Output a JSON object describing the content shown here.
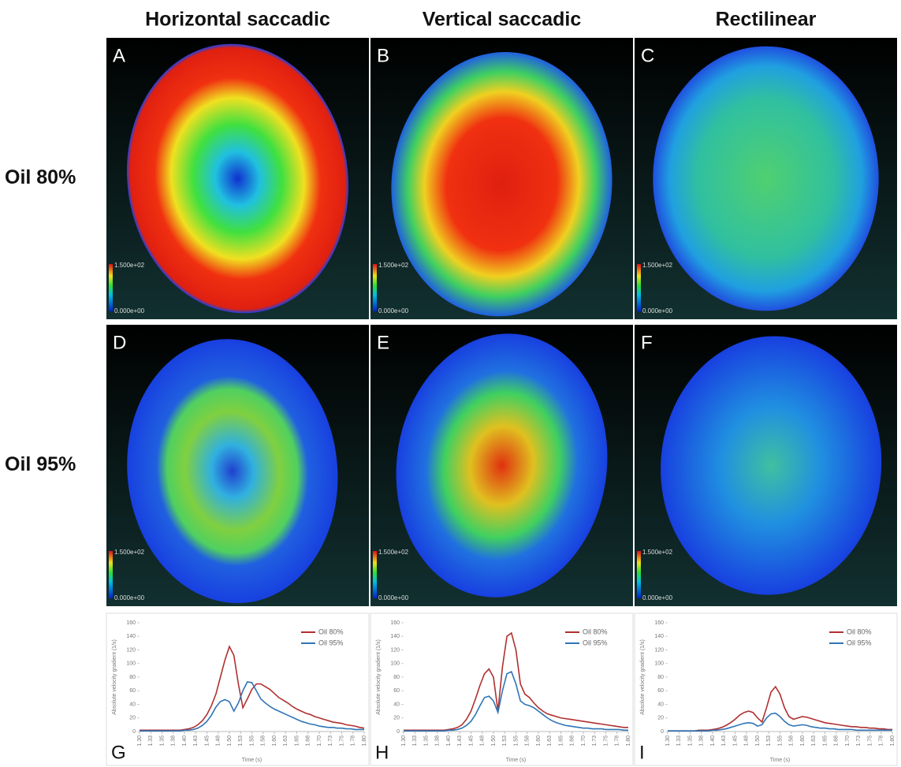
{
  "columns": [
    "Horizontal saccadic",
    "Vertical saccadic",
    "Rectilinear"
  ],
  "rows": [
    "Oil 80%",
    "Oil 95%"
  ],
  "panel_letters": [
    "A",
    "B",
    "C",
    "D",
    "E",
    "F",
    "G",
    "H",
    "I"
  ],
  "colorbar": {
    "max": "1.500e+02",
    "min": "0.000e+00"
  },
  "chart_data": [
    {
      "type": "line",
      "xlabel": "Time (s)",
      "ylabel": "Absolute velocity gradient (1/s)",
      "x": [
        1.3,
        1.31,
        1.32,
        1.33,
        1.34,
        1.35,
        1.36,
        1.37,
        1.38,
        1.39,
        1.4,
        1.41,
        1.42,
        1.43,
        1.44,
        1.45,
        1.46,
        1.47,
        1.48,
        1.49,
        1.5,
        1.51,
        1.52,
        1.53,
        1.54,
        1.55,
        1.56,
        1.57,
        1.58,
        1.59,
        1.6,
        1.61,
        1.62,
        1.63,
        1.64,
        1.65,
        1.66,
        1.67,
        1.68,
        1.69,
        1.7,
        1.71,
        1.72,
        1.73,
        1.74,
        1.75,
        1.76,
        1.77,
        1.78,
        1.79,
        1.8
      ],
      "series": [
        {
          "name": "Oil 80%",
          "color": "#b03030",
          "values": [
            2,
            2,
            2,
            2,
            2,
            2,
            2,
            2,
            2,
            2,
            3,
            4,
            6,
            10,
            16,
            25,
            38,
            55,
            80,
            105,
            125,
            112,
            70,
            35,
            48,
            62,
            70,
            70,
            66,
            62,
            56,
            50,
            46,
            42,
            37,
            33,
            30,
            27,
            25,
            22,
            20,
            18,
            16,
            14,
            13,
            12,
            10,
            9,
            8,
            6,
            5
          ]
        },
        {
          "name": "Oil 95%",
          "color": "#2e75b6",
          "values": [
            1,
            1,
            1,
            1,
            1,
            1,
            1,
            1,
            1,
            1,
            2,
            2,
            3,
            5,
            9,
            15,
            24,
            36,
            44,
            47,
            44,
            30,
            42,
            60,
            73,
            72,
            60,
            48,
            42,
            37,
            33,
            30,
            27,
            24,
            21,
            18,
            15,
            13,
            11,
            10,
            8,
            7,
            6,
            6,
            5,
            5,
            4,
            4,
            3,
            3,
            3
          ]
        }
      ],
      "xlim": [
        1.3,
        1.8
      ],
      "xticks": [
        {
          "value": 1.3,
          "label": "1.30"
        },
        {
          "value": 1.325,
          "label": "1.33"
        },
        {
          "value": 1.35,
          "label": "1.35"
        },
        {
          "value": 1.375,
          "label": "1.38"
        },
        {
          "value": 1.4,
          "label": "1.40"
        },
        {
          "value": 1.425,
          "label": "1.43"
        },
        {
          "value": 1.45,
          "label": "1.45"
        },
        {
          "value": 1.475,
          "label": "1.48"
        },
        {
          "value": 1.5,
          "label": "1.50"
        },
        {
          "value": 1.525,
          "label": "1.53"
        },
        {
          "value": 1.55,
          "label": "1.55"
        },
        {
          "value": 1.575,
          "label": "1.58"
        },
        {
          "value": 1.6,
          "label": "1.60"
        },
        {
          "value": 1.625,
          "label": "1.63"
        },
        {
          "value": 1.65,
          "label": "1.65"
        },
        {
          "value": 1.675,
          "label": "1.68"
        },
        {
          "value": 1.7,
          "label": "1.70"
        },
        {
          "value": 1.725,
          "label": "1.73"
        },
        {
          "value": 1.75,
          "label": "1.75"
        },
        {
          "value": 1.775,
          "label": "1.78"
        },
        {
          "value": 1.8,
          "label": "1.80"
        }
      ],
      "ylim": [
        0,
        160
      ],
      "yticks": [
        0,
        20,
        40,
        60,
        80,
        100,
        120,
        140,
        160
      ]
    },
    {
      "type": "line",
      "xlabel": "Time (s)",
      "ylabel": "Absolute velocity gradient (1/s)",
      "x": [
        1.3,
        1.31,
        1.32,
        1.33,
        1.34,
        1.35,
        1.36,
        1.37,
        1.38,
        1.39,
        1.4,
        1.41,
        1.42,
        1.43,
        1.44,
        1.45,
        1.46,
        1.47,
        1.48,
        1.49,
        1.5,
        1.51,
        1.52,
        1.53,
        1.54,
        1.55,
        1.56,
        1.57,
        1.58,
        1.59,
        1.6,
        1.61,
        1.62,
        1.63,
        1.64,
        1.65,
        1.66,
        1.67,
        1.68,
        1.69,
        1.7,
        1.71,
        1.72,
        1.73,
        1.74,
        1.75,
        1.76,
        1.77,
        1.78,
        1.79,
        1.8
      ],
      "series": [
        {
          "name": "Oil 80%",
          "color": "#b03030",
          "values": [
            2,
            2,
            2,
            2,
            2,
            2,
            2,
            2,
            2,
            2,
            3,
            4,
            6,
            10,
            18,
            30,
            48,
            68,
            85,
            92,
            80,
            30,
            95,
            140,
            145,
            120,
            70,
            55,
            50,
            42,
            35,
            30,
            26,
            24,
            22,
            20,
            19,
            18,
            17,
            16,
            15,
            14,
            13,
            12,
            11,
            10,
            9,
            8,
            7,
            6,
            6
          ]
        },
        {
          "name": "Oil 95%",
          "color": "#2e75b6",
          "values": [
            1,
            1,
            1,
            1,
            1,
            1,
            1,
            1,
            1,
            1,
            2,
            2,
            3,
            5,
            9,
            15,
            25,
            38,
            50,
            52,
            45,
            28,
            60,
            85,
            88,
            70,
            45,
            40,
            38,
            35,
            30,
            25,
            20,
            16,
            13,
            11,
            9,
            8,
            7,
            6,
            5,
            5,
            4,
            4,
            4,
            3,
            3,
            3,
            3,
            2,
            2
          ]
        }
      ],
      "xlim": [
        1.3,
        1.8
      ],
      "xticks": [
        {
          "value": 1.3,
          "label": "1.30"
        },
        {
          "value": 1.325,
          "label": "1.33"
        },
        {
          "value": 1.35,
          "label": "1.35"
        },
        {
          "value": 1.375,
          "label": "1.38"
        },
        {
          "value": 1.4,
          "label": "1.40"
        },
        {
          "value": 1.425,
          "label": "1.43"
        },
        {
          "value": 1.45,
          "label": "1.45"
        },
        {
          "value": 1.475,
          "label": "1.48"
        },
        {
          "value": 1.5,
          "label": "1.50"
        },
        {
          "value": 1.525,
          "label": "1.53"
        },
        {
          "value": 1.55,
          "label": "1.55"
        },
        {
          "value": 1.575,
          "label": "1.58"
        },
        {
          "value": 1.6,
          "label": "1.60"
        },
        {
          "value": 1.625,
          "label": "1.63"
        },
        {
          "value": 1.65,
          "label": "1.65"
        },
        {
          "value": 1.675,
          "label": "1.68"
        },
        {
          "value": 1.7,
          "label": "1.70"
        },
        {
          "value": 1.725,
          "label": "1.73"
        },
        {
          "value": 1.75,
          "label": "1.75"
        },
        {
          "value": 1.775,
          "label": "1.78"
        },
        {
          "value": 1.8,
          "label": "1.80"
        }
      ],
      "ylim": [
        0,
        160
      ],
      "yticks": [
        0,
        20,
        40,
        60,
        80,
        100,
        120,
        140,
        160
      ]
    },
    {
      "type": "line",
      "xlabel": "Time (s)",
      "ylabel": "Absolute velocity gradient (1/s)",
      "x": [
        1.3,
        1.31,
        1.32,
        1.33,
        1.34,
        1.35,
        1.36,
        1.37,
        1.38,
        1.39,
        1.4,
        1.41,
        1.42,
        1.43,
        1.44,
        1.45,
        1.46,
        1.47,
        1.48,
        1.49,
        1.5,
        1.51,
        1.52,
        1.53,
        1.54,
        1.55,
        1.56,
        1.57,
        1.58,
        1.59,
        1.6,
        1.61,
        1.62,
        1.63,
        1.64,
        1.65,
        1.66,
        1.67,
        1.68,
        1.69,
        1.7,
        1.71,
        1.72,
        1.73,
        1.74,
        1.75,
        1.76,
        1.77,
        1.78,
        1.79,
        1.8
      ],
      "series": [
        {
          "name": "Oil 80%",
          "color": "#b03030",
          "values": [
            1,
            1,
            1,
            1,
            1,
            1,
            1,
            2,
            2,
            2,
            3,
            4,
            6,
            9,
            13,
            18,
            24,
            28,
            30,
            28,
            20,
            14,
            35,
            58,
            66,
            55,
            35,
            22,
            18,
            20,
            22,
            21,
            19,
            17,
            15,
            13,
            12,
            11,
            10,
            9,
            8,
            7,
            7,
            6,
            6,
            5,
            5,
            4,
            4,
            3,
            3
          ]
        },
        {
          "name": "Oil 95%",
          "color": "#2e75b6",
          "values": [
            1,
            1,
            1,
            1,
            1,
            1,
            1,
            1,
            1,
            1,
            2,
            2,
            3,
            4,
            6,
            8,
            10,
            12,
            13,
            12,
            8,
            10,
            20,
            26,
            27,
            22,
            15,
            10,
            8,
            9,
            10,
            9,
            7,
            6,
            5,
            5,
            4,
            4,
            3,
            3,
            3,
            3,
            2,
            2,
            2,
            2,
            2,
            2,
            2,
            2,
            2
          ]
        }
      ],
      "xlim": [
        1.3,
        1.8
      ],
      "xticks": [
        {
          "value": 1.3,
          "label": "1.30"
        },
        {
          "value": 1.325,
          "label": "1.33"
        },
        {
          "value": 1.35,
          "label": "1.35"
        },
        {
          "value": 1.375,
          "label": "1.38"
        },
        {
          "value": 1.4,
          "label": "1.40"
        },
        {
          "value": 1.425,
          "label": "1.43"
        },
        {
          "value": 1.45,
          "label": "1.45"
        },
        {
          "value": 1.475,
          "label": "1.48"
        },
        {
          "value": 1.5,
          "label": "1.50"
        },
        {
          "value": 1.525,
          "label": "1.53"
        },
        {
          "value": 1.55,
          "label": "1.55"
        },
        {
          "value": 1.575,
          "label": "1.58"
        },
        {
          "value": 1.6,
          "label": "1.60"
        },
        {
          "value": 1.625,
          "label": "1.63"
        },
        {
          "value": 1.65,
          "label": "1.65"
        },
        {
          "value": 1.675,
          "label": "1.68"
        },
        {
          "value": 1.7,
          "label": "1.70"
        },
        {
          "value": 1.725,
          "label": "1.73"
        },
        {
          "value": 1.75,
          "label": "1.75"
        },
        {
          "value": 1.775,
          "label": "1.78"
        },
        {
          "value": 1.8,
          "label": "1.80"
        }
      ],
      "ylim": [
        0,
        160
      ],
      "yticks": [
        0,
        20,
        40,
        60,
        80,
        100,
        120,
        140,
        160
      ]
    }
  ]
}
